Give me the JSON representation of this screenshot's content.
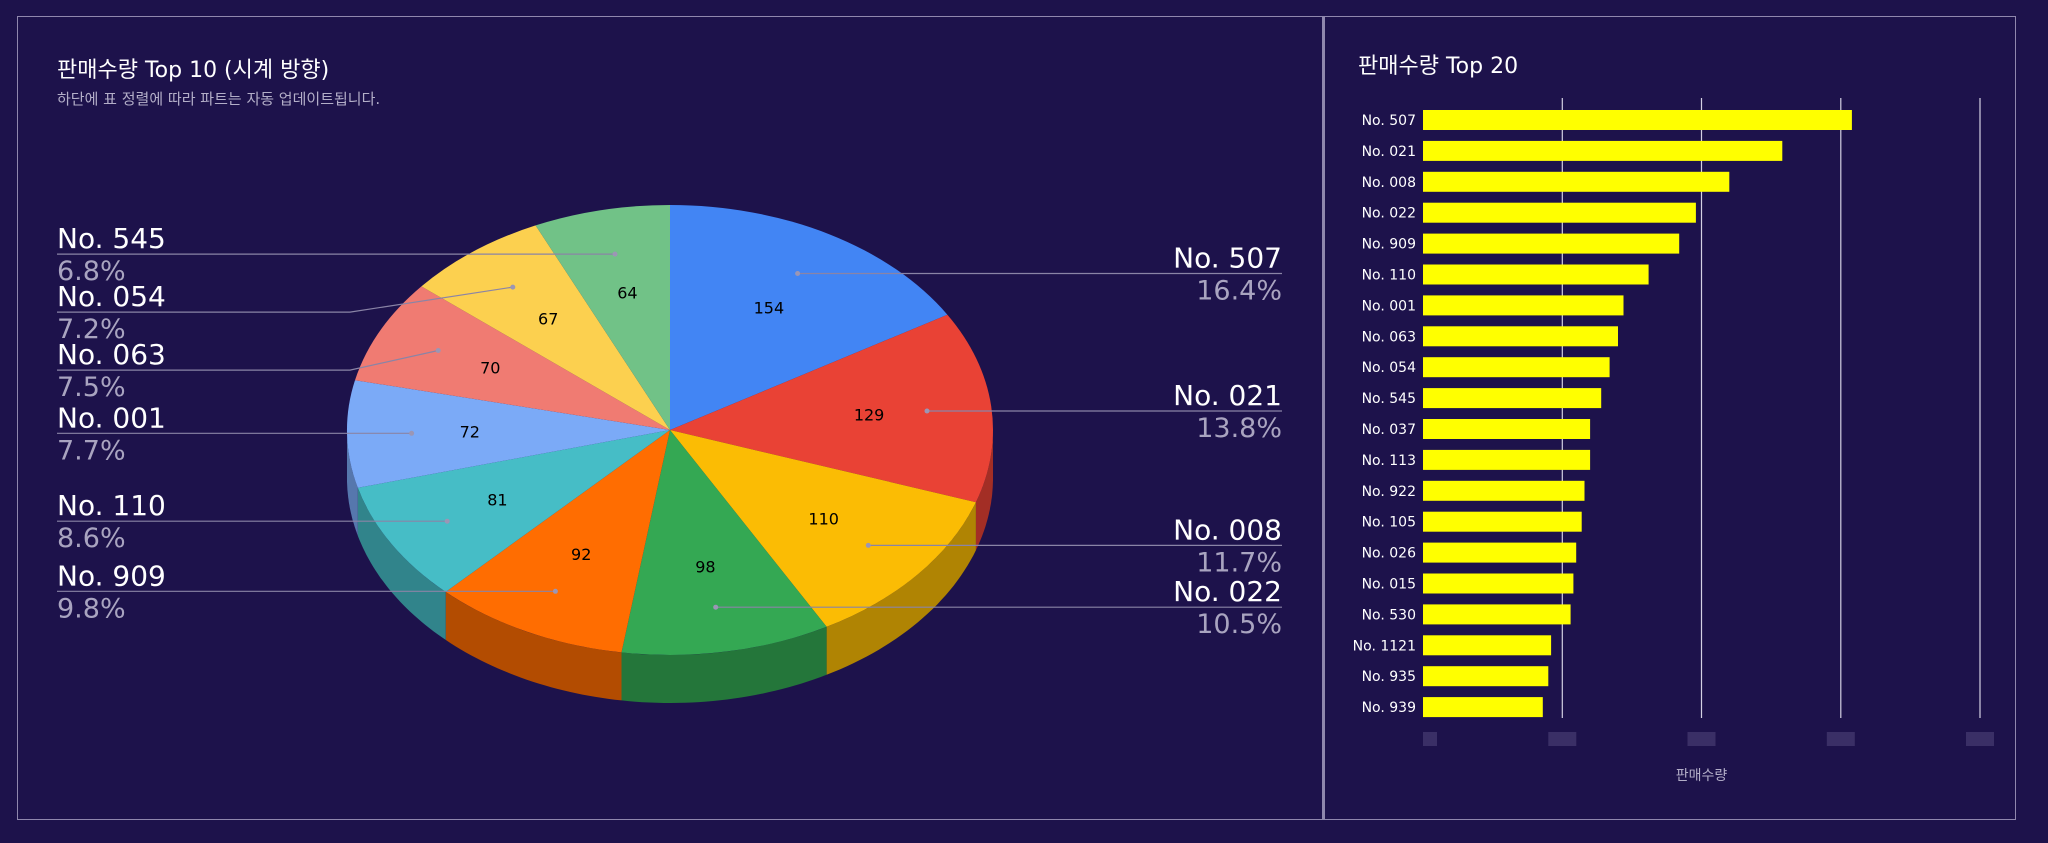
{
  "pie_panel": {
    "title": "판매수량 Top 10 (시계 방향)",
    "subtitle": "하단에 표 정렬에 따라 파트는 자동 업데이트됩니다."
  },
  "bar_panel": {
    "title": "판매수량 Top 20",
    "xlabel": "판매수량"
  },
  "chart_data": [
    {
      "type": "pie",
      "title": "판매수량 Top 10 (시계 방향)",
      "subtitle": "하단에 표 정렬에 따라 파트는 자동 업데이트됩니다.",
      "style": "3d",
      "direction": "clockwise",
      "slices": [
        {
          "label": "No. 507",
          "value": 154,
          "percent": "16.4%",
          "color": "#4285f4"
        },
        {
          "label": "No. 021",
          "value": 129,
          "percent": "13.8%",
          "color": "#e94235"
        },
        {
          "label": "No. 008",
          "value": 110,
          "percent": "11.7%",
          "color": "#fbbc04"
        },
        {
          "label": "No. 022",
          "value": 98,
          "percent": "10.5%",
          "color": "#34a853"
        },
        {
          "label": "No. 909",
          "value": 92,
          "percent": "9.8%",
          "color": "#ff6d01"
        },
        {
          "label": "No. 110",
          "value": 81,
          "percent": "8.6%",
          "color": "#46bdc6"
        },
        {
          "label": "No. 001",
          "value": 72,
          "percent": "7.7%",
          "color": "#7baaf7"
        },
        {
          "label": "No. 063",
          "value": 70,
          "percent": "7.5%",
          "color": "#f07b72"
        },
        {
          "label": "No. 054",
          "value": 67,
          "percent": "7.2%",
          "color": "#fcd04f"
        },
        {
          "label": "No. 545",
          "value": 64,
          "percent": "6.8%",
          "color": "#71c287"
        }
      ]
    },
    {
      "type": "bar",
      "orientation": "horizontal",
      "title": "판매수량 Top 20",
      "xlabel": "판매수량",
      "xlim": [
        0,
        200
      ],
      "grid": true,
      "bar_color": "#ffff00",
      "categories": [
        "No. 507",
        "No. 021",
        "No. 008",
        "No. 022",
        "No. 909",
        "No. 110",
        "No. 001",
        "No. 063",
        "No. 054",
        "No. 545",
        "No. 037",
        "No. 113",
        "No. 922",
        "No. 105",
        "No. 026",
        "No. 015",
        "No. 530",
        "No. 1121",
        "No. 935",
        "No. 939"
      ],
      "values": [
        154,
        129,
        110,
        98,
        92,
        81,
        72,
        70,
        67,
        64,
        60,
        60,
        58,
        57,
        55,
        54,
        53,
        46,
        45,
        43
      ]
    }
  ]
}
